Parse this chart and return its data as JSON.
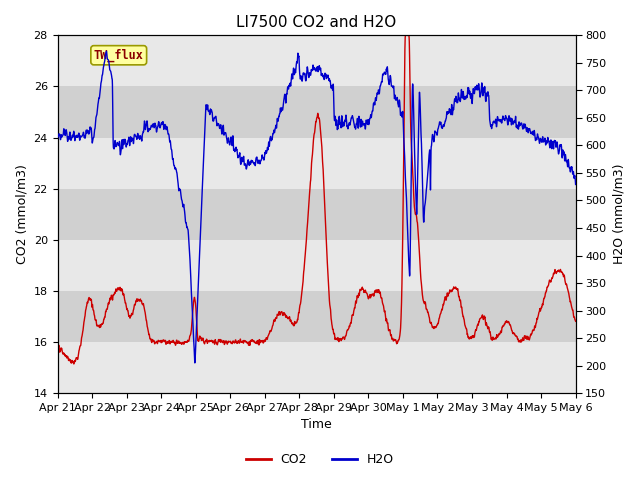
{
  "title": "LI7500 CO2 and H2O",
  "xlabel": "Time",
  "ylabel_left": "CO2 (mmol/m3)",
  "ylabel_right": "H2O (mmol/m3)",
  "ylim_left": [
    14,
    28
  ],
  "ylim_right": [
    150,
    800
  ],
  "yticks_left": [
    14,
    16,
    18,
    20,
    22,
    24,
    26,
    28
  ],
  "yticks_right": [
    150,
    200,
    250,
    300,
    350,
    400,
    450,
    500,
    550,
    600,
    650,
    700,
    750,
    800
  ],
  "date_labels": [
    "Apr 21",
    "Apr 22",
    "Apr 23",
    "Apr 24",
    "Apr 25",
    "Apr 26",
    "Apr 27",
    "Apr 28",
    "Apr 29",
    "Apr 30",
    "May 1",
    "May 2",
    "May 3",
    "May 4",
    "May 5",
    "May 6"
  ],
  "co2_color": "#CC0000",
  "h2o_color": "#0000CC",
  "legend_co2": "CO2",
  "legend_h2o": "H2O",
  "annotation_text": "TW_flux",
  "background_color": "#ffffff",
  "band_color_light": "#e8e8e8",
  "band_color_dark": "#d0d0d0",
  "grid_color": "#ffffff",
  "title_fontsize": 11,
  "label_fontsize": 9,
  "tick_fontsize": 8,
  "line_width": 1.0,
  "num_days": 15
}
